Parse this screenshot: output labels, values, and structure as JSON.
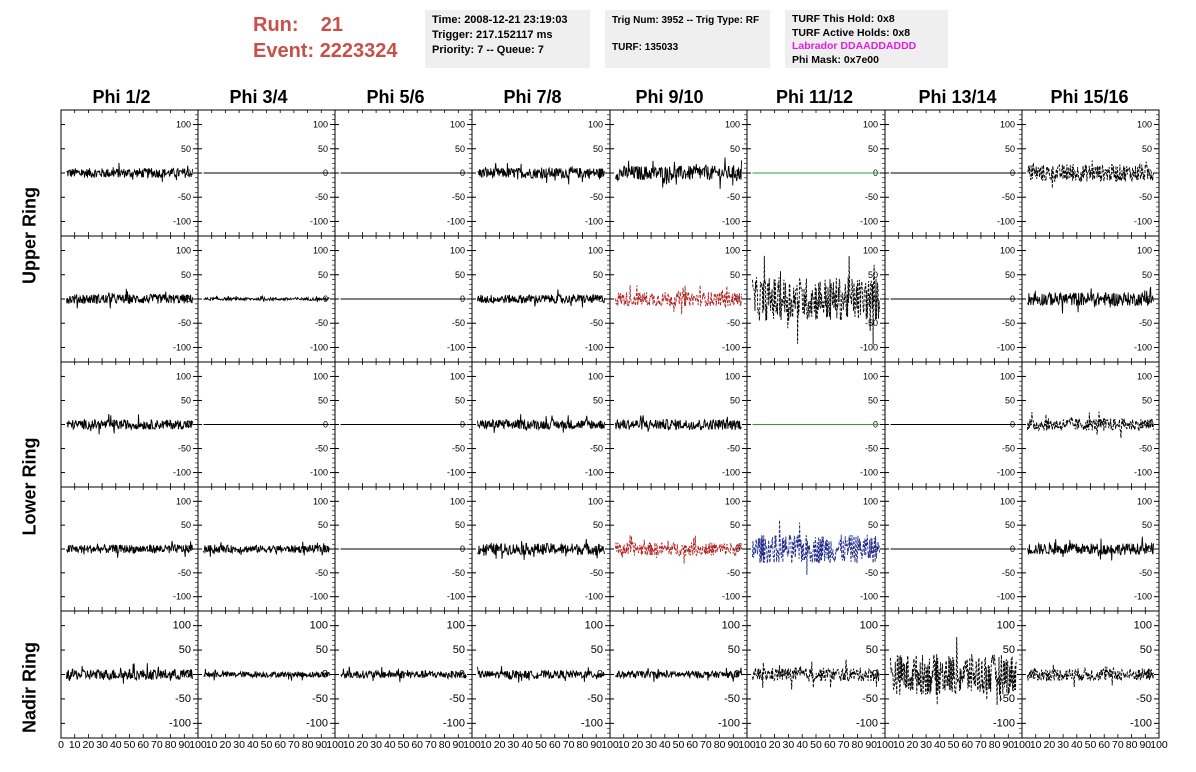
{
  "header": {
    "run_label": "Run:",
    "run_value": "21",
    "event_label": "Event:",
    "event_value": "2223324",
    "info1": [
      "Time: 2008-12-21 23:19:03",
      "Trigger: 217.152117 ms",
      "Priority: 7 -- Queue: 7"
    ],
    "info2": [
      "Trig Num: 3952 -- Trig Type: RF",
      "TURF: 135033"
    ],
    "info3": [
      "TURF This Hold: 0x8",
      "TURF Active Holds: 0x8",
      "Labrador DDAADDADDD",
      "Phi Mask: 0x7e00"
    ]
  },
  "columns": [
    "Phi 1/2",
    "Phi 3/4",
    "Phi 5/6",
    "Phi 7/8",
    "Phi 9/10",
    "Phi 11/12",
    "Phi 13/14",
    "Phi 15/16"
  ],
  "rings": [
    "Upper Ring",
    "Lower Ring",
    "Nadir Ring"
  ],
  "colors": {
    "black": "#000000",
    "red": "#b22222",
    "green": "#2ca02c",
    "blue": "#1f2a8c",
    "run_text": "#c8504a",
    "magenta": "#e020e0"
  },
  "chart_data": {
    "type": "line",
    "xlim": [
      0,
      100
    ],
    "ylim": [
      -130,
      130
    ],
    "yticks": [
      -100,
      -50,
      0,
      50,
      100
    ],
    "xticks": [
      0,
      10,
      20,
      30,
      40,
      50,
      60,
      70,
      80,
      90,
      100
    ],
    "samples": 260,
    "panels": [
      [
        {
          "amp": 10,
          "color": "black",
          "style": "solid"
        },
        {
          "amp": 0,
          "color": "black",
          "style": "solid"
        },
        {
          "amp": 0,
          "color": "black",
          "style": "solid"
        },
        {
          "amp": 11,
          "color": "black",
          "style": "solid"
        },
        {
          "amp": 15,
          "color": "black",
          "style": "solid"
        },
        {
          "amp": 0,
          "color": "green",
          "style": "solid"
        },
        {
          "amp": 0,
          "color": "black",
          "style": "solid"
        },
        {
          "amp": 18,
          "color": "black",
          "style": "dashed"
        }
      ],
      [
        {
          "amp": 10,
          "color": "black",
          "style": "solid"
        },
        {
          "amp": 3,
          "color": "black",
          "style": "solid"
        },
        {
          "amp": 0,
          "color": "black",
          "style": "solid"
        },
        {
          "amp": 9,
          "color": "black",
          "style": "solid"
        },
        {
          "amp": 15,
          "color": "red",
          "style": "dashed"
        },
        {
          "amp": 45,
          "color": "black",
          "style": "dashed"
        },
        {
          "amp": 0,
          "color": "black",
          "style": "solid"
        },
        {
          "amp": 14,
          "color": "black",
          "style": "solid"
        }
      ],
      [
        {
          "amp": 10,
          "color": "black",
          "style": "solid"
        },
        {
          "amp": 0,
          "color": "black",
          "style": "solid"
        },
        {
          "amp": 0,
          "color": "black",
          "style": "solid"
        },
        {
          "amp": 10,
          "color": "black",
          "style": "solid"
        },
        {
          "amp": 11,
          "color": "black",
          "style": "solid"
        },
        {
          "amp": 0,
          "color": "green",
          "style": "solid"
        },
        {
          "amp": 0,
          "color": "black",
          "style": "solid"
        },
        {
          "amp": 13,
          "color": "black",
          "style": "dashed"
        }
      ],
      [
        {
          "amp": 9,
          "color": "black",
          "style": "solid"
        },
        {
          "amp": 8,
          "color": "black",
          "style": "solid"
        },
        {
          "amp": 0,
          "color": "black",
          "style": "solid"
        },
        {
          "amp": 12,
          "color": "black",
          "style": "solid"
        },
        {
          "amp": 14,
          "color": "red",
          "style": "dashed"
        },
        {
          "amp": 30,
          "color": "blue",
          "style": "dashed"
        },
        {
          "amp": 0,
          "color": "black",
          "style": "solid"
        },
        {
          "amp": 12,
          "color": "black",
          "style": "solid"
        }
      ],
      [
        {
          "amp": 11,
          "color": "black",
          "style": "solid"
        },
        {
          "amp": 6,
          "color": "black",
          "style": "solid"
        },
        {
          "amp": 8,
          "color": "black",
          "style": "solid"
        },
        {
          "amp": 8,
          "color": "black",
          "style": "solid"
        },
        {
          "amp": 7,
          "color": "black",
          "style": "solid"
        },
        {
          "amp": 14,
          "color": "black",
          "style": "dashed"
        },
        {
          "amp": 42,
          "color": "black",
          "style": "dashed"
        },
        {
          "amp": 13,
          "color": "black",
          "style": "dashed"
        }
      ]
    ]
  }
}
